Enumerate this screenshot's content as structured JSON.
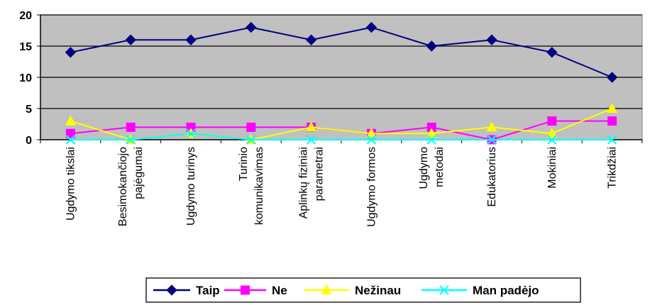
{
  "chart_data": {
    "type": "line",
    "title": "",
    "xlabel": "",
    "ylabel": "",
    "ylim": [
      0,
      20
    ],
    "yticks": [
      0,
      5,
      10,
      15,
      20
    ],
    "grid": true,
    "legend_position": "bottom",
    "plot_background": "#c0c0c0",
    "categories": [
      [
        "Ugdymo tikslai"
      ],
      [
        "Besimokančiojo",
        "pajėgumai"
      ],
      [
        "Ugdymo turinys"
      ],
      [
        "Turinio",
        "komunikavimas"
      ],
      [
        "Aplinkų fiziniai",
        "parametrai"
      ],
      [
        "Ugdymo formos"
      ],
      [
        "Ugdymo",
        "metodai"
      ],
      [
        "Edukatorius"
      ],
      [
        "Mokiniai"
      ],
      [
        "Trikdžiai"
      ]
    ],
    "series": [
      {
        "name": "Taip",
        "color": "#000080",
        "marker": "diamond",
        "values": [
          14,
          16,
          16,
          18,
          16,
          18,
          15,
          16,
          14,
          10
        ]
      },
      {
        "name": "Ne",
        "color": "#ff00ff",
        "marker": "square",
        "values": [
          1,
          2,
          2,
          2,
          2,
          1,
          2,
          0,
          3,
          3
        ]
      },
      {
        "name": "Nežinau",
        "color": "#ffff00",
        "marker": "triangle",
        "values": [
          3,
          0,
          1,
          0,
          2,
          1,
          1,
          2,
          1,
          5
        ]
      },
      {
        "name": "Man padėjo",
        "color": "#00ffff",
        "marker": "x",
        "values": [
          0,
          0,
          1,
          0,
          0,
          0,
          0,
          0,
          0,
          0
        ]
      }
    ]
  }
}
